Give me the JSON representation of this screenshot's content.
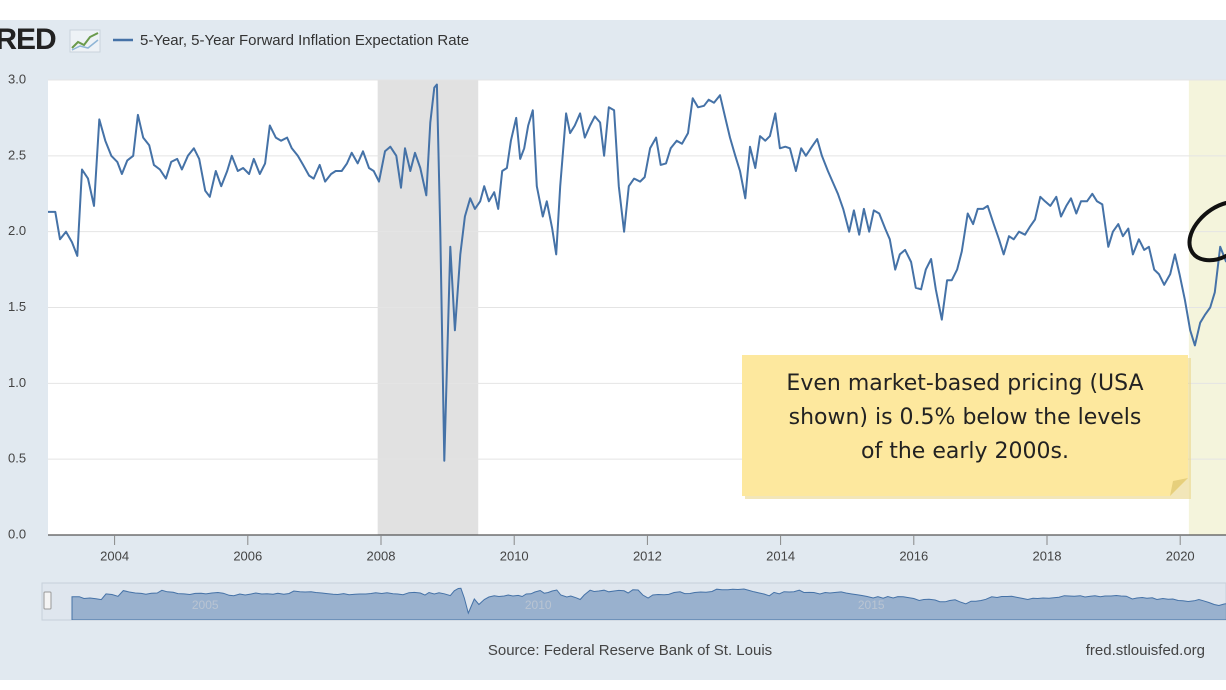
{
  "chart_data": {
    "type": "line",
    "logo": "FRED",
    "source": "Source: Federal Reserve Bank of St. Louis",
    "site": "fred.stlouisfed.org",
    "annotation": [
      "Even market-based pricing (USA",
      "shown) is 0.5% below the levels",
      "of the early 2000s."
    ],
    "xlim": [
      2003.0,
      2020.69
    ],
    "xticks": [
      2004,
      2006,
      2008,
      2010,
      2012,
      2014,
      2016,
      2018,
      2020
    ],
    "ylim": [
      0,
      3.0
    ],
    "yticks": [
      {
        "value": 0,
        "label": "0.0"
      },
      0.5,
      {
        "value": 1,
        "label": "1.0"
      },
      1.5,
      {
        "value": 2,
        "label": "2.0"
      },
      2.5,
      {
        "value": 3,
        "label": "3.0"
      }
    ],
    "grid": true,
    "shaded_periods": [
      {
        "start": 2007.95,
        "end": 2009.46,
        "color": "#e1e1e1"
      },
      {
        "start": 2020.13,
        "end": 2020.69,
        "color": "#f4f4dc"
      }
    ],
    "navigator_ticks": [
      2005,
      2010,
      2015
    ],
    "series": [
      {
        "name": "5-Year, 5-Year Forward Inflation Expectation Rate",
        "color": "#4572a7",
        "x": [
          2003.0,
          2003.11,
          2003.18,
          2003.27,
          2003.36,
          2003.44,
          2003.51,
          2003.6,
          2003.69,
          2003.77,
          2003.86,
          2003.95,
          2004.04,
          2004.11,
          2004.19,
          2004.28,
          2004.35,
          2004.43,
          2004.52,
          2004.59,
          2004.68,
          2004.77,
          2004.85,
          2004.94,
          2005.01,
          2005.1,
          2005.19,
          2005.27,
          2005.36,
          2005.43,
          2005.52,
          2005.6,
          2005.69,
          2005.76,
          2005.85,
          2005.93,
          2006.02,
          2006.09,
          2006.18,
          2006.26,
          2006.33,
          2006.42,
          2006.5,
          2006.59,
          2006.66,
          2006.75,
          2006.83,
          2006.92,
          2006.99,
          2007.08,
          2007.16,
          2007.25,
          2007.32,
          2007.41,
          2007.49,
          2007.56,
          2007.65,
          2007.73,
          2007.82,
          2007.89,
          2007.97,
          2008.06,
          2008.14,
          2008.23,
          2008.3,
          2008.36,
          2008.44,
          2008.51,
          2008.59,
          2008.68,
          2008.74,
          2008.8,
          2008.84,
          2008.89,
          2008.95,
          2008.99,
          2009.04,
          2009.11,
          2009.19,
          2009.26,
          2009.34,
          2009.41,
          2009.49,
          2009.55,
          2009.62,
          2009.7,
          2009.76,
          2009.82,
          2009.89,
          2009.95,
          2010.03,
          2010.09,
          2010.15,
          2010.21,
          2010.28,
          2010.34,
          2010.43,
          2010.49,
          2010.57,
          2010.63,
          2010.69,
          2010.78,
          2010.84,
          2010.91,
          2010.99,
          2011.06,
          2011.14,
          2011.21,
          2011.29,
          2011.35,
          2011.42,
          2011.5,
          2011.57,
          2011.65,
          2011.72,
          2011.8,
          2011.89,
          2011.96,
          2012.04,
          2012.13,
          2012.2,
          2012.28,
          2012.35,
          2012.44,
          2012.52,
          2012.61,
          2012.68,
          2012.76,
          2012.85,
          2012.92,
          2013.0,
          2013.09,
          2013.17,
          2013.24,
          2013.32,
          2013.39,
          2013.47,
          2013.54,
          2013.62,
          2013.69,
          2013.77,
          2013.84,
          2013.92,
          2013.99,
          2014.07,
          2014.14,
          2014.23,
          2014.31,
          2014.38,
          2014.47,
          2014.55,
          2014.62,
          2014.71,
          2014.79,
          2014.86,
          2014.94,
          2015.03,
          2015.1,
          2015.18,
          2015.25,
          2015.33,
          2015.4,
          2015.48,
          2015.57,
          2015.64,
          2015.72,
          2015.79,
          2015.87,
          2015.96,
          2016.03,
          2016.11,
          2016.18,
          2016.26,
          2016.33,
          2016.42,
          2016.5,
          2016.57,
          2016.65,
          2016.72,
          2016.81,
          2016.89,
          2016.96,
          2017.04,
          2017.11,
          2017.2,
          2017.28,
          2017.35,
          2017.43,
          2017.5,
          2017.58,
          2017.67,
          2017.74,
          2017.82,
          2017.9,
          2017.97,
          2018.05,
          2018.14,
          2018.21,
          2018.29,
          2018.36,
          2018.44,
          2018.51,
          2018.6,
          2018.68,
          2018.75,
          2018.83,
          2018.92,
          2018.99,
          2019.07,
          2019.14,
          2019.22,
          2019.29,
          2019.38,
          2019.46,
          2019.53,
          2019.61,
          2019.68,
          2019.76,
          2019.85,
          2019.92,
          2019.99,
          2020.07,
          2020.15,
          2020.22,
          2020.3,
          2020.37,
          2020.45,
          2020.52,
          2020.6,
          2020.69
        ],
        "values": [
          2.13,
          2.13,
          1.95,
          2.0,
          1.93,
          1.84,
          2.41,
          2.35,
          2.17,
          2.74,
          2.6,
          2.5,
          2.46,
          2.38,
          2.47,
          2.5,
          2.77,
          2.62,
          2.57,
          2.44,
          2.41,
          2.35,
          2.46,
          2.48,
          2.41,
          2.5,
          2.55,
          2.48,
          2.27,
          2.23,
          2.4,
          2.3,
          2.4,
          2.5,
          2.4,
          2.42,
          2.38,
          2.48,
          2.38,
          2.45,
          2.7,
          2.62,
          2.6,
          2.62,
          2.55,
          2.5,
          2.44,
          2.37,
          2.35,
          2.44,
          2.33,
          2.38,
          2.4,
          2.4,
          2.45,
          2.52,
          2.45,
          2.53,
          2.42,
          2.4,
          2.33,
          2.53,
          2.56,
          2.5,
          2.29,
          2.55,
          2.4,
          2.52,
          2.42,
          2.24,
          2.72,
          2.95,
          2.97,
          2.0,
          0.49,
          1.1,
          1.9,
          1.35,
          1.85,
          2.1,
          2.22,
          2.15,
          2.2,
          2.3,
          2.2,
          2.26,
          2.15,
          2.4,
          2.42,
          2.6,
          2.75,
          2.48,
          2.55,
          2.7,
          2.8,
          2.3,
          2.1,
          2.2,
          2.02,
          1.85,
          2.3,
          2.78,
          2.65,
          2.7,
          2.78,
          2.62,
          2.7,
          2.76,
          2.72,
          2.5,
          2.82,
          2.8,
          2.3,
          2.0,
          2.3,
          2.35,
          2.33,
          2.36,
          2.55,
          2.62,
          2.44,
          2.45,
          2.55,
          2.6,
          2.58,
          2.65,
          2.88,
          2.82,
          2.83,
          2.87,
          2.85,
          2.9,
          2.75,
          2.62,
          2.5,
          2.4,
          2.22,
          2.56,
          2.42,
          2.63,
          2.6,
          2.63,
          2.78,
          2.55,
          2.56,
          2.55,
          2.4,
          2.55,
          2.5,
          2.56,
          2.61,
          2.5,
          2.4,
          2.32,
          2.25,
          2.15,
          2.0,
          2.14,
          1.98,
          2.15,
          2.0,
          2.14,
          2.12,
          2.02,
          1.95,
          1.75,
          1.85,
          1.88,
          1.8,
          1.63,
          1.62,
          1.75,
          1.82,
          1.62,
          1.42,
          1.68,
          1.68,
          1.75,
          1.87,
          2.12,
          2.05,
          2.15,
          2.15,
          2.17,
          2.05,
          1.95,
          1.85,
          1.97,
          1.95,
          2.0,
          1.98,
          2.03,
          2.08,
          2.23,
          2.2,
          2.17,
          2.23,
          2.1,
          2.17,
          2.22,
          2.12,
          2.2,
          2.2,
          2.25,
          2.2,
          2.18,
          1.9,
          2.0,
          2.05,
          1.97,
          2.02,
          1.85,
          1.95,
          1.88,
          1.9,
          1.75,
          1.72,
          1.65,
          1.72,
          1.85,
          1.72,
          1.55,
          1.35,
          1.25,
          1.4,
          1.45,
          1.5,
          1.6,
          1.9,
          1.8
        ]
      }
    ]
  }
}
